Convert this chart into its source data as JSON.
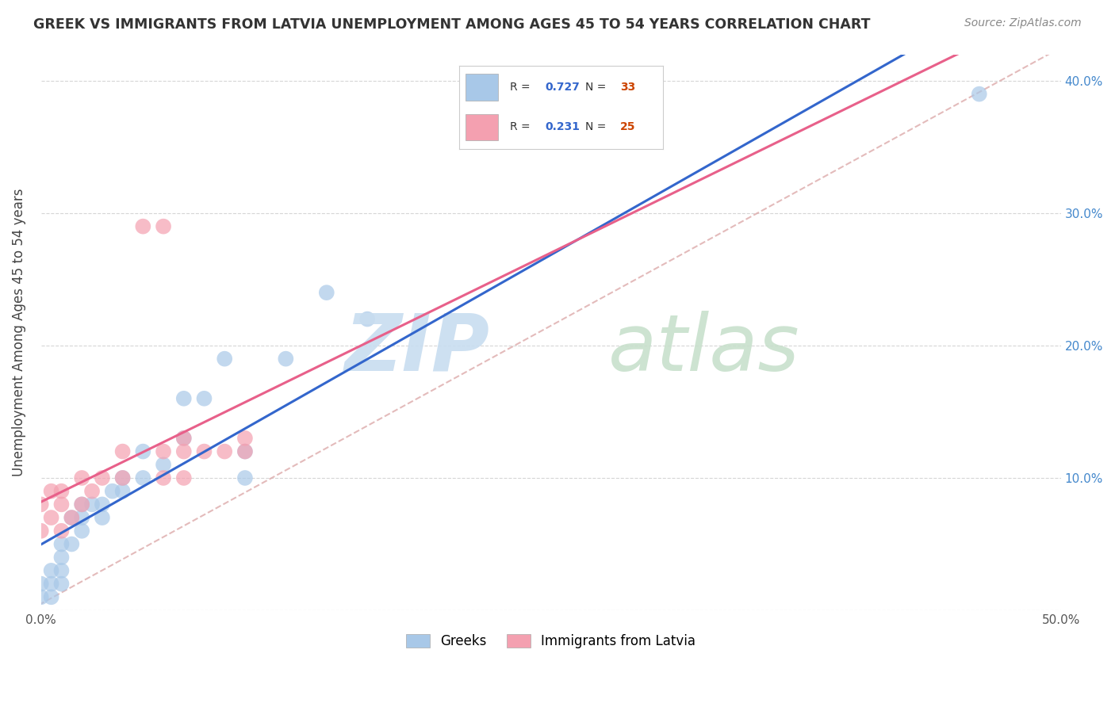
{
  "title": "GREEK VS IMMIGRANTS FROM LATVIA UNEMPLOYMENT AMONG AGES 45 TO 54 YEARS CORRELATION CHART",
  "source": "Source: ZipAtlas.com",
  "ylabel": "Unemployment Among Ages 45 to 54 years",
  "xlim": [
    0.0,
    0.5
  ],
  "ylim": [
    0.0,
    0.42
  ],
  "xticks": [
    0.0,
    0.1,
    0.2,
    0.3,
    0.4,
    0.5
  ],
  "yticks": [
    0.0,
    0.1,
    0.2,
    0.3,
    0.4
  ],
  "xticklabels": [
    "0.0%",
    "",
    "",
    "",
    "",
    "50.0%"
  ],
  "yticklabels_right": [
    "",
    "10.0%",
    "20.0%",
    "30.0%",
    "40.0%"
  ],
  "blue_color": "#a8c8e8",
  "pink_color": "#f4a0b0",
  "blue_line_color": "#3366cc",
  "pink_line_color": "#e8608a",
  "pink_dash_color": "#ddaaaa",
  "greek_R": 0.727,
  "greek_N": 33,
  "latvia_R": 0.231,
  "latvia_N": 25,
  "greek_x": [
    0.0,
    0.0,
    0.005,
    0.005,
    0.005,
    0.01,
    0.01,
    0.01,
    0.01,
    0.015,
    0.015,
    0.02,
    0.02,
    0.02,
    0.025,
    0.03,
    0.03,
    0.035,
    0.04,
    0.04,
    0.05,
    0.05,
    0.06,
    0.07,
    0.07,
    0.08,
    0.09,
    0.1,
    0.1,
    0.12,
    0.14,
    0.16,
    0.46
  ],
  "greek_y": [
    0.01,
    0.02,
    0.01,
    0.02,
    0.03,
    0.02,
    0.03,
    0.04,
    0.05,
    0.05,
    0.07,
    0.06,
    0.07,
    0.08,
    0.08,
    0.07,
    0.08,
    0.09,
    0.09,
    0.1,
    0.1,
    0.12,
    0.11,
    0.13,
    0.16,
    0.16,
    0.19,
    0.1,
    0.12,
    0.19,
    0.24,
    0.22,
    0.39
  ],
  "latvia_x": [
    0.0,
    0.0,
    0.005,
    0.005,
    0.01,
    0.01,
    0.01,
    0.015,
    0.02,
    0.02,
    0.025,
    0.03,
    0.04,
    0.04,
    0.05,
    0.06,
    0.06,
    0.06,
    0.07,
    0.07,
    0.07,
    0.08,
    0.09,
    0.1,
    0.1
  ],
  "latvia_y": [
    0.06,
    0.08,
    0.07,
    0.09,
    0.06,
    0.08,
    0.09,
    0.07,
    0.08,
    0.1,
    0.09,
    0.1,
    0.1,
    0.12,
    0.29,
    0.1,
    0.12,
    0.29,
    0.1,
    0.12,
    0.13,
    0.12,
    0.12,
    0.12,
    0.13
  ],
  "watermark_zip_color": "#c8ddf0",
  "watermark_atlas_color": "#c8e0cc",
  "background_color": "#ffffff",
  "grid_color": "#cccccc"
}
